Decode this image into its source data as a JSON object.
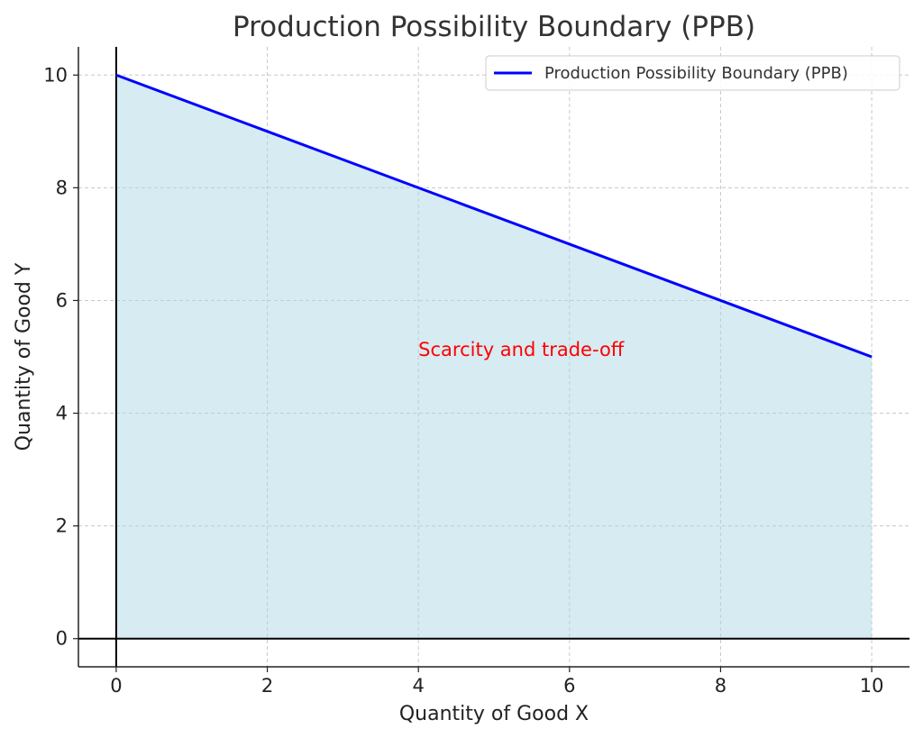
{
  "chart_data": {
    "type": "area",
    "title": "Production Possibility Boundary (PPB)",
    "xlabel": "Quantity of Good X",
    "ylabel": "Quantity of Good Y",
    "xlim": [
      -0.5,
      10.5
    ],
    "ylim": [
      -0.5,
      10.5
    ],
    "xticks": [
      0,
      2,
      4,
      6,
      8,
      10
    ],
    "yticks": [
      0,
      2,
      4,
      6,
      8,
      10
    ],
    "grid": true,
    "legend_position": "top-right",
    "series": [
      {
        "name": "Production Possibility Boundary (PPB)",
        "x": [
          0,
          2,
          4,
          6,
          8,
          10
        ],
        "y": [
          10,
          9,
          8,
          7,
          6,
          5
        ],
        "color": "#0000ff",
        "fill_color": "#add8e6"
      }
    ],
    "annotations": [
      {
        "text": "Scarcity and trade-off",
        "x": 4,
        "y": 5,
        "color": "#ff0000"
      }
    ]
  }
}
